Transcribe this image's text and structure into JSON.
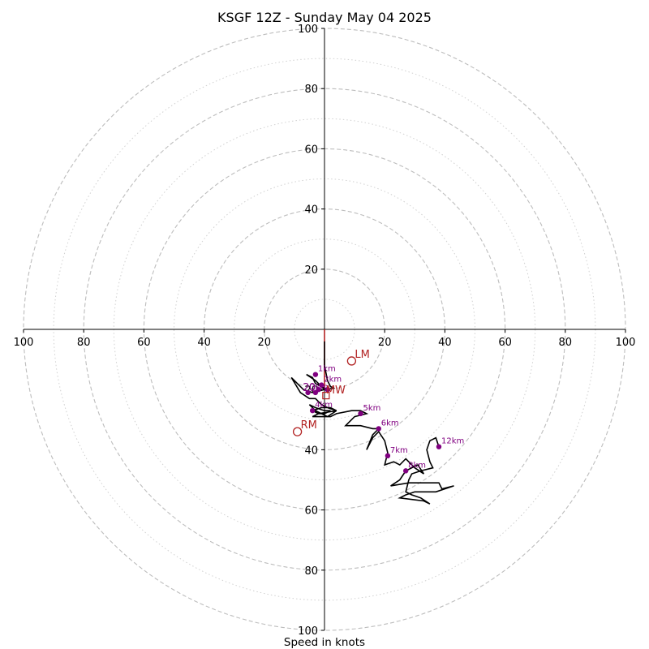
{
  "chart_data": {
    "type": "hodograph",
    "title": "KSGF 12Z - Sunday May 04 2025",
    "xlabel": "Speed in knots",
    "axis_range": [
      -100,
      100
    ],
    "major_rings": [
      20,
      40,
      60,
      80,
      100
    ],
    "minor_rings": [
      10,
      30,
      50,
      70,
      90
    ],
    "x_tick_labels": [
      "100",
      "80",
      "60",
      "40",
      "20",
      "",
      "20",
      "40",
      "60",
      "80",
      "100"
    ],
    "x_tick_values": [
      -100,
      -80,
      -60,
      -40,
      -20,
      0,
      20,
      40,
      60,
      80,
      100
    ],
    "y_tick_labels_upper": [
      "20",
      "40",
      "60",
      "80",
      "100"
    ],
    "y_tick_values_upper": [
      20,
      40,
      60,
      80,
      100
    ],
    "y_tick_labels_lower": [
      "20",
      "40",
      "60",
      "80",
      "100"
    ],
    "y_tick_values_lower": [
      -20,
      -40,
      -60,
      -80,
      -100
    ],
    "grid": true,
    "colors": {
      "trace": "#000000",
      "height_marker": "#800080",
      "motion": "#b22222",
      "grid": "#bdbdbd"
    },
    "trace": [
      [
        0,
        -4
      ],
      [
        0,
        -12
      ],
      [
        1,
        -17
      ],
      [
        2,
        -19
      ],
      [
        3,
        -19.5
      ],
      [
        1,
        -20
      ],
      [
        -1,
        -19
      ],
      [
        -3,
        -17
      ],
      [
        -6,
        -15
      ],
      [
        -4,
        -16
      ],
      [
        -3,
        -18
      ],
      [
        -1,
        -19
      ],
      [
        0,
        -20
      ],
      [
        -4,
        -21
      ],
      [
        -7,
        -20
      ],
      [
        -11,
        -16
      ],
      [
        -8,
        -21
      ],
      [
        -5,
        -23
      ],
      [
        -3,
        -23
      ],
      [
        -1,
        -25
      ],
      [
        1,
        -26
      ],
      [
        4,
        -27
      ],
      [
        2,
        -26
      ],
      [
        -1,
        -26
      ],
      [
        -4,
        -27
      ],
      [
        -2,
        -28
      ],
      [
        0,
        -28
      ],
      [
        2,
        -27
      ],
      [
        0,
        -27
      ],
      [
        -3,
        -26
      ],
      [
        -5,
        -25
      ],
      [
        -3,
        -27
      ],
      [
        -1,
        -28
      ],
      [
        1,
        -29
      ],
      [
        4,
        -27
      ],
      [
        -2,
        -28
      ],
      [
        -4,
        -29
      ],
      [
        -1,
        -29
      ],
      [
        2,
        -29
      ],
      [
        4,
        -28
      ],
      [
        9,
        -27
      ],
      [
        12,
        -27
      ],
      [
        14,
        -28
      ],
      [
        10,
        -29
      ],
      [
        7,
        -32
      ],
      [
        12,
        -32
      ],
      [
        16,
        -33
      ],
      [
        18,
        -33
      ],
      [
        16,
        -35
      ],
      [
        14,
        -40
      ],
      [
        16,
        -36
      ],
      [
        18,
        -34
      ],
      [
        20,
        -37
      ],
      [
        21,
        -41
      ],
      [
        20,
        -45
      ],
      [
        23,
        -44
      ],
      [
        25,
        -45
      ],
      [
        27,
        -43
      ],
      [
        30,
        -46
      ],
      [
        33,
        -48
      ],
      [
        31,
        -45
      ],
      [
        29,
        -46
      ],
      [
        27,
        -47
      ],
      [
        25,
        -50
      ],
      [
        22,
        -52
      ],
      [
        28,
        -51
      ],
      [
        38,
        -51
      ],
      [
        39,
        -53
      ],
      [
        43,
        -52
      ],
      [
        37,
        -54
      ],
      [
        30,
        -54
      ],
      [
        27,
        -55
      ],
      [
        25,
        -56
      ],
      [
        33,
        -57
      ],
      [
        35,
        -58
      ],
      [
        32,
        -56
      ],
      [
        29,
        -55
      ],
      [
        27,
        -54
      ],
      [
        28,
        -50
      ],
      [
        29,
        -48
      ],
      [
        32,
        -47
      ],
      [
        36,
        -46
      ],
      [
        35,
        -44
      ],
      [
        34,
        -40
      ],
      [
        35,
        -37
      ],
      [
        37,
        -36
      ],
      [
        38,
        -39
      ]
    ],
    "height_markers": [
      {
        "label": "1km",
        "x": -3,
        "y": -15
      },
      {
        "label": "2km",
        "x": -1,
        "y": -18.5
      },
      {
        "label": "3km",
        "x": -5.5,
        "y": -21
      },
      {
        "label": "4km",
        "x": -4,
        "y": -27
      },
      {
        "label": "5km",
        "x": 12,
        "y": -28
      },
      {
        "label": "6km",
        "x": 18,
        "y": -33
      },
      {
        "label": "7km",
        "x": 21,
        "y": -42
      },
      {
        "label": "8km",
        "x": 27,
        "y": -47
      },
      {
        "label": "12km",
        "x": 38,
        "y": -39
      }
    ],
    "extra_markers": [
      {
        "label": "",
        "x": -3,
        "y": -21
      },
      {
        "label": "",
        "x": 1,
        "y": -20
      },
      {
        "label": "",
        "x": -2,
        "y": -20
      }
    ],
    "storm_motion": [
      {
        "label": "LM",
        "x": 9,
        "y": -10.5
      },
      {
        "label": "MW",
        "x": 0.5,
        "y": -20
      },
      {
        "label": "RM",
        "x": -9,
        "y": -34
      }
    ],
    "motion_box": {
      "x": 0.5,
      "y": -22
    },
    "shear_vector": [
      [
        0,
        0
      ],
      [
        0,
        -20
      ]
    ],
    "small_labels": [
      "2",
      "0"
    ]
  }
}
